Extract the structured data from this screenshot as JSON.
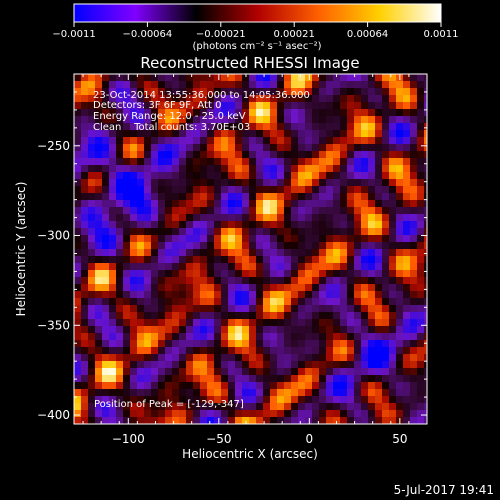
{
  "chart_data": {
    "type": "heatmap",
    "title": "Reconstructed RHESSI Image",
    "xlabel": "Heliocentric X (arcsec)",
    "ylabel": "Heliocentric Y (arcsec)",
    "xlim": [
      -130,
      65
    ],
    "ylim": [
      -405,
      -210
    ],
    "x_ticks": [
      -100,
      -50,
      0,
      50
    ],
    "x_tick_labels": [
      "−100",
      "−50",
      "0",
      "50"
    ],
    "y_ticks": [
      -400,
      -350,
      -300,
      -250
    ],
    "y_tick_labels": [
      "−400",
      "−350",
      "−300",
      "−250"
    ],
    "colorbar": {
      "range": [
        -0.0011,
        0.0011
      ],
      "tick_labels": [
        "−0.0011",
        "−0.00064",
        "−0.00021",
        "0.00021",
        "0.00064",
        "0.0011"
      ],
      "unit_label": "(photons cm⁻² s⁻¹ asec⁻²)",
      "colors": [
        "#0000ff",
        "#8000ff",
        "#000000",
        "#b00000",
        "#ff6000",
        "#ffd000",
        "#ffffff"
      ]
    },
    "annotations": [
      "23-Oct-2014 13:55:36.000 to 14:05:36.000",
      "Detectors: 3F 6F 9F, Att 0",
      "Energy Range: 12.0 - 25.0 keV",
      "Clean    Total counts: 3.70E+03"
    ],
    "peak_label": "Position of Peak = [-129,-347]"
  },
  "footer": {
    "date": "5-Jul-2017 19:41"
  }
}
